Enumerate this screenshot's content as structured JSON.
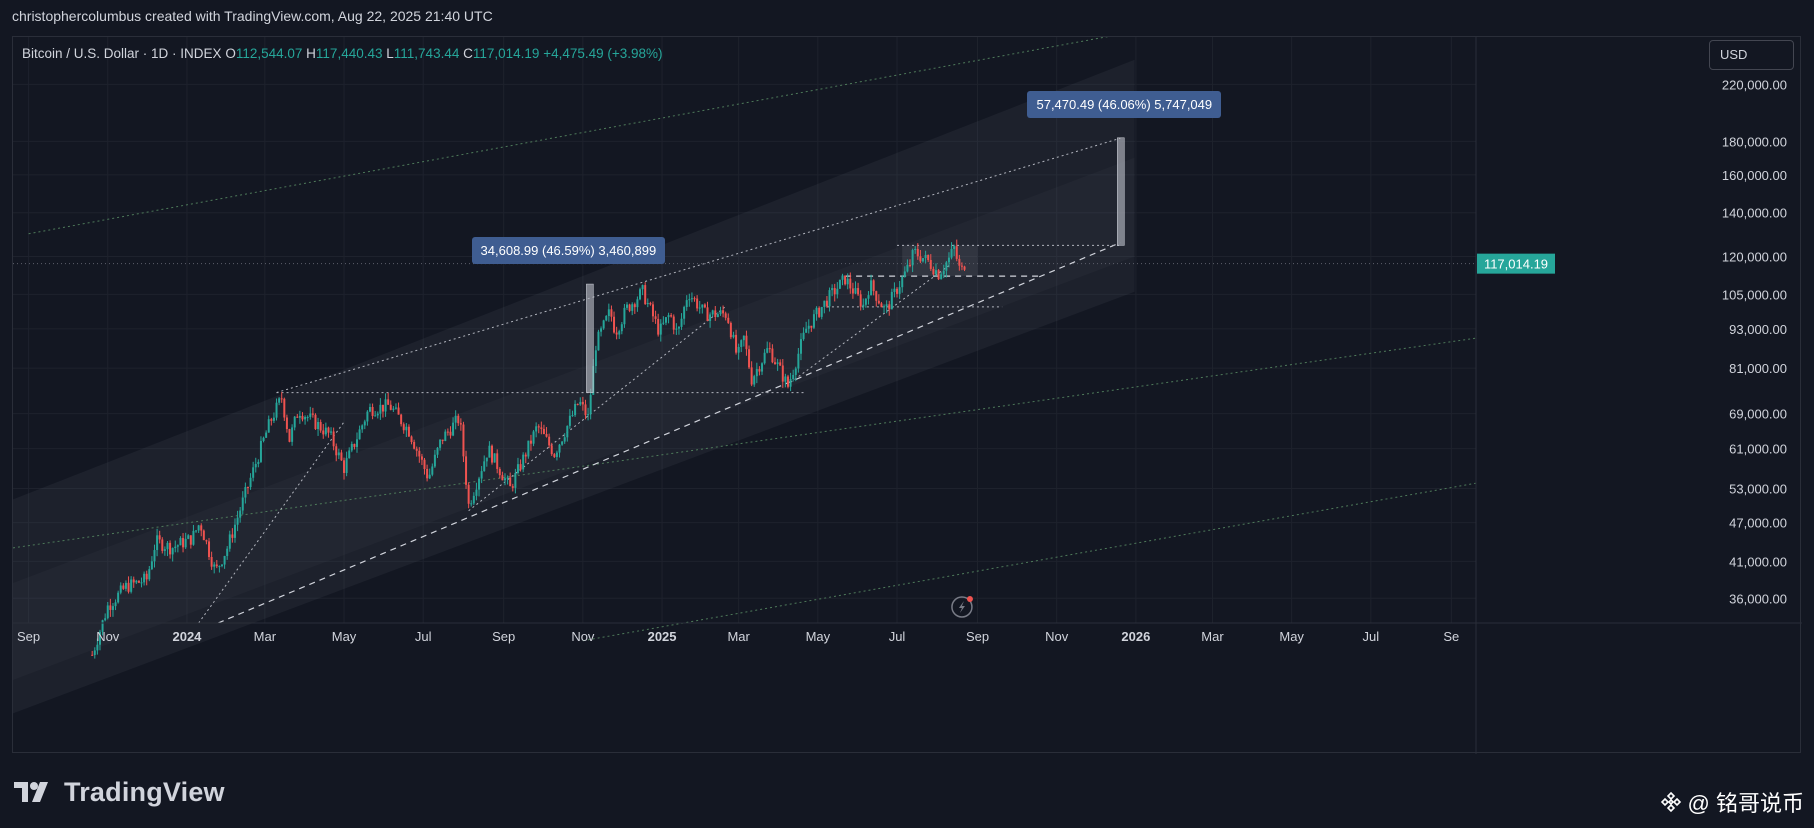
{
  "header": {
    "title": "christophercolumbus created with TradingView.com, Aug 22, 2025 21:40 UTC"
  },
  "legend": {
    "symbol": "Bitcoin / U.S. Dollar · 1D · INDEX",
    "open_label": "O",
    "open": "112,544.07",
    "high_label": "H",
    "high": "117,440.43",
    "low_label": "L",
    "low": "111,743.44",
    "close_label": "C",
    "close": "117,014.19",
    "change": "+4,475.49 (+3.98%)"
  },
  "currency_button": "USD",
  "colors": {
    "background": "#131722",
    "up": "#26a69a",
    "down": "#ef5350",
    "label_box": "#3f5d91",
    "price_tag": "#26a69a",
    "channel_line": "#4e7a5a"
  },
  "footer": {
    "logo_text": "TradingView"
  },
  "watermark": {
    "text": "@ 铭哥说币",
    "icon": "binance-diamond-icon"
  },
  "chart_data": {
    "type": "candlestick",
    "y_scale": "log",
    "ylim": [
      33000,
      260000
    ],
    "xlim": [
      "2023-08-20",
      "2026-09-20"
    ],
    "grid": true,
    "y_ticks": [
      {
        "value": 36000,
        "label": "36,000.00"
      },
      {
        "value": 41000,
        "label": "41,000.00"
      },
      {
        "value": 47000,
        "label": "47,000.00"
      },
      {
        "value": 53000,
        "label": "53,000.00"
      },
      {
        "value": 61000,
        "label": "61,000.00"
      },
      {
        "value": 69000,
        "label": "69,000.00"
      },
      {
        "value": 81000,
        "label": "81,000.00"
      },
      {
        "value": 93000,
        "label": "93,000.00"
      },
      {
        "value": 105000,
        "label": "105,000.00"
      },
      {
        "value": 120000,
        "label": "120,000.00"
      },
      {
        "value": 140000,
        "label": "140,000.00"
      },
      {
        "value": 160000,
        "label": "160,000.00"
      },
      {
        "value": 180000,
        "label": "180,000.00"
      },
      {
        "value": 220000,
        "label": "220,000.00"
      }
    ],
    "x_ticks": [
      {
        "date": "2023-09-01",
        "label": "Sep",
        "bold": false
      },
      {
        "date": "2023-11-01",
        "label": "Nov",
        "bold": false
      },
      {
        "date": "2024-01-01",
        "label": "2024",
        "bold": true
      },
      {
        "date": "2024-03-01",
        "label": "Mar",
        "bold": false
      },
      {
        "date": "2024-05-01",
        "label": "May",
        "bold": false
      },
      {
        "date": "2024-07-01",
        "label": "Jul",
        "bold": false
      },
      {
        "date": "2024-09-01",
        "label": "Sep",
        "bold": false
      },
      {
        "date": "2024-11-01",
        "label": "Nov",
        "bold": false
      },
      {
        "date": "2025-01-01",
        "label": "2025",
        "bold": true
      },
      {
        "date": "2025-03-01",
        "label": "Mar",
        "bold": false
      },
      {
        "date": "2025-05-01",
        "label": "May",
        "bold": false
      },
      {
        "date": "2025-07-01",
        "label": "Jul",
        "bold": false
      },
      {
        "date": "2025-09-01",
        "label": "Sep",
        "bold": false
      },
      {
        "date": "2025-11-01",
        "label": "Nov",
        "bold": false
      },
      {
        "date": "2026-01-01",
        "label": "2026",
        "bold": true
      },
      {
        "date": "2026-03-01",
        "label": "Mar",
        "bold": false
      },
      {
        "date": "2026-05-01",
        "label": "May",
        "bold": false
      },
      {
        "date": "2026-07-01",
        "label": "Jul",
        "bold": false
      },
      {
        "date": "2026-09-01",
        "label": "Se",
        "bold": false
      }
    ],
    "price_path": [
      [
        "2023-10-20",
        29500
      ],
      [
        "2023-11-01",
        35000
      ],
      [
        "2023-11-15",
        37500
      ],
      [
        "2023-12-01",
        38500
      ],
      [
        "2023-12-08",
        44000
      ],
      [
        "2023-12-20",
        43000
      ],
      [
        "2024-01-05",
        44500
      ],
      [
        "2024-01-11",
        47000
      ],
      [
        "2024-01-23",
        39500
      ],
      [
        "2024-02-01",
        43000
      ],
      [
        "2024-02-15",
        52000
      ],
      [
        "2024-02-28",
        62000
      ],
      [
        "2024-03-05",
        67000
      ],
      [
        "2024-03-14",
        73000
      ],
      [
        "2024-03-20",
        63000
      ],
      [
        "2024-03-27",
        70000
      ],
      [
        "2024-04-12",
        66000
      ],
      [
        "2024-04-20",
        64000
      ],
      [
        "2024-05-01",
        57000
      ],
      [
        "2024-05-20",
        70000
      ],
      [
        "2024-06-05",
        71000
      ],
      [
        "2024-06-20",
        65000
      ],
      [
        "2024-07-05",
        55000
      ],
      [
        "2024-07-15",
        63000
      ],
      [
        "2024-07-29",
        68000
      ],
      [
        "2024-08-05",
        50000
      ],
      [
        "2024-08-20",
        61000
      ],
      [
        "2024-09-06",
        53000
      ],
      [
        "2024-09-27",
        66000
      ],
      [
        "2024-10-10",
        60000
      ],
      [
        "2024-10-29",
        72000
      ],
      [
        "2024-11-05",
        68000
      ],
      [
        "2024-11-11",
        88000
      ],
      [
        "2024-11-22",
        99000
      ],
      [
        "2024-11-26",
        92000
      ],
      [
        "2024-12-05",
        100000
      ],
      [
        "2024-12-17",
        106000
      ],
      [
        "2024-12-30",
        92000
      ],
      [
        "2025-01-07",
        98000
      ],
      [
        "2025-01-13",
        91000
      ],
      [
        "2025-01-21",
        106000
      ],
      [
        "2025-02-03",
        98000
      ],
      [
        "2025-02-20",
        98000
      ],
      [
        "2025-02-28",
        84000
      ],
      [
        "2025-03-05",
        90000
      ],
      [
        "2025-03-11",
        78000
      ],
      [
        "2025-03-24",
        87000
      ],
      [
        "2025-04-08",
        76000
      ],
      [
        "2025-04-22",
        93000
      ],
      [
        "2025-05-08",
        103000
      ],
      [
        "2025-05-22",
        111000
      ],
      [
        "2025-06-05",
        101000
      ],
      [
        "2025-06-10",
        109000
      ],
      [
        "2025-06-22",
        99000
      ],
      [
        "2025-07-03",
        109000
      ],
      [
        "2025-07-11",
        117000
      ],
      [
        "2025-07-14",
        122000
      ],
      [
        "2025-07-25",
        118000
      ],
      [
        "2025-08-02",
        113000
      ],
      [
        "2025-08-10",
        119000
      ],
      [
        "2025-08-14",
        123500
      ],
      [
        "2025-08-19",
        113000
      ],
      [
        "2025-08-22",
        117014
      ]
    ],
    "last_price": {
      "value": 117014.19,
      "label": "117,014.19"
    },
    "annotations": [
      {
        "type": "range_measure",
        "label": "34,608.99 (46.59%) 3,460,899",
        "date": "2024-11-06",
        "from": 74300,
        "to": 108900
      },
      {
        "type": "range_measure",
        "label": "57,470.49 (46.06%) 5,747,049",
        "date": "2025-12-20",
        "from": 124800,
        "to": 182300
      }
    ],
    "lines": [
      {
        "name": "channel-upper-outer",
        "style": "dotted-green",
        "from": [
          "2023-09-01",
          130000
        ],
        "to": [
          "2026-09-20",
          330000
        ]
      },
      {
        "name": "channel-lower-mid",
        "style": "dotted-green",
        "from": [
          "2023-08-20",
          43000
        ],
        "to": [
          "2026-09-20",
          90000
        ]
      },
      {
        "name": "channel-lower-outer",
        "style": "dotted-green",
        "from": [
          "2024-11-01",
          31000
        ],
        "to": [
          "2026-09-20",
          54000
        ]
      },
      {
        "name": "upper-resistance",
        "style": "dotted-white",
        "from": [
          "2024-03-10",
          74300
        ],
        "to": [
          "2025-12-20",
          182000
        ]
      },
      {
        "name": "support-dashed",
        "style": "dashed-white",
        "from": [
          "2024-01-25",
          33000
        ],
        "to": [
          "2025-12-20",
          126000
        ]
      },
      {
        "name": "trend-2024-low",
        "style": "dotted-white",
        "from": [
          "2024-01-10",
          33000
        ],
        "to": [
          "2024-05-01",
          67000
        ]
      },
      {
        "name": "trend-2024-aug",
        "style": "dotted-white",
        "from": [
          "2024-08-05",
          49000
        ],
        "to": [
          "2025-02-20",
          101000
        ]
      },
      {
        "name": "trend-2025-apr",
        "style": "dotted-white",
        "from": [
          "2025-04-10",
          77000
        ],
        "to": [
          "2025-08-12",
          117000
        ]
      },
      {
        "name": "ath-2024-level",
        "style": "dotted-white",
        "from": [
          "2024-03-10",
          74300
        ],
        "to": [
          "2025-04-20",
          74300
        ]
      },
      {
        "name": "range-top",
        "style": "dotted-white",
        "from": [
          "2025-07-01",
          124800
        ],
        "to": [
          "2025-12-20",
          124800
        ]
      },
      {
        "name": "range-mid",
        "style": "dashed-white",
        "from": [
          "2025-05-22",
          112000
        ],
        "to": [
          "2025-10-20",
          112000
        ]
      },
      {
        "name": "range-bottom",
        "style": "dotted-white",
        "from": [
          "2025-05-08",
          100500
        ],
        "to": [
          "2025-09-20",
          100500
        ]
      }
    ]
  }
}
